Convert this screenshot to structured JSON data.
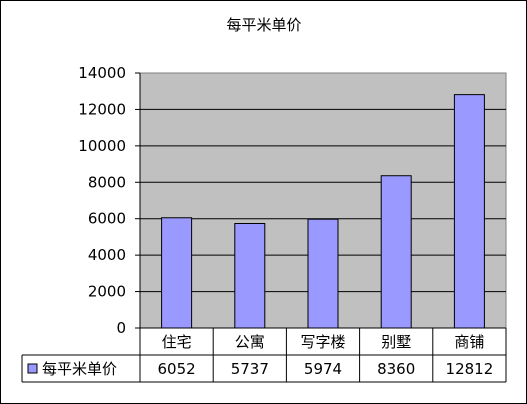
{
  "chart_data": {
    "type": "bar",
    "title": "每平米单价",
    "categories": [
      "住宅",
      "公寓",
      "写字楼",
      "别墅",
      "商铺"
    ],
    "series": [
      {
        "name": "每平米单价",
        "values": [
          6052,
          5737,
          5974,
          8360,
          12812
        ],
        "color": "#9999ff"
      }
    ],
    "yticks": [
      "0",
      "2000",
      "4000",
      "6000",
      "8000",
      "10000",
      "12000",
      "14000"
    ],
    "ylim": [
      0,
      14000
    ],
    "grid": true,
    "plot_bg": "#c0c0c0",
    "legend": "data-table-left",
    "data_table": true
  }
}
